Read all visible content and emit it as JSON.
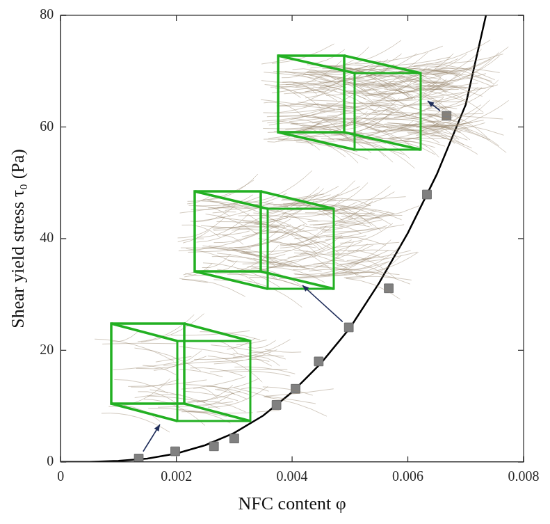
{
  "chart_data": {
    "type": "scatter",
    "x_label": "NFC content φ",
    "y_label": "Shear yield stress τ₀ (Pa)",
    "xlim": [
      0,
      0.008
    ],
    "xticks": [
      0,
      0.002,
      0.004,
      0.006,
      0.008
    ],
    "ylim": [
      0,
      80
    ],
    "yticks": [
      0,
      20,
      40,
      60,
      80
    ],
    "grid": false,
    "series": [
      {
        "type": "scatter",
        "marker": "square",
        "color": "#808080",
        "x": [
          0.00135,
          0.00198,
          0.00265,
          0.003,
          0.00373,
          0.00406,
          0.00446,
          0.00498,
          0.00567,
          0.00633,
          0.00667
        ],
        "values": [
          0.6,
          1.9,
          2.8,
          4.2,
          10.2,
          13.1,
          18,
          24.1,
          31.1,
          47.9,
          62
        ]
      },
      {
        "type": "line",
        "line_style": "solid",
        "color": "#000000",
        "x": [
          0,
          0.0005,
          0.001,
          0.0015,
          0.002,
          0.0025,
          0.003,
          0.0035,
          0.004,
          0.0045,
          0.005,
          0.0055,
          0.006,
          0.0065,
          0.007,
          0.00735
        ],
        "values": [
          0,
          0.02,
          0.2,
          0.6,
          1.5,
          3,
          5.2,
          8.3,
          12.5,
          17.7,
          24,
          32,
          41,
          51.5,
          64,
          80
        ]
      }
    ]
  }
}
